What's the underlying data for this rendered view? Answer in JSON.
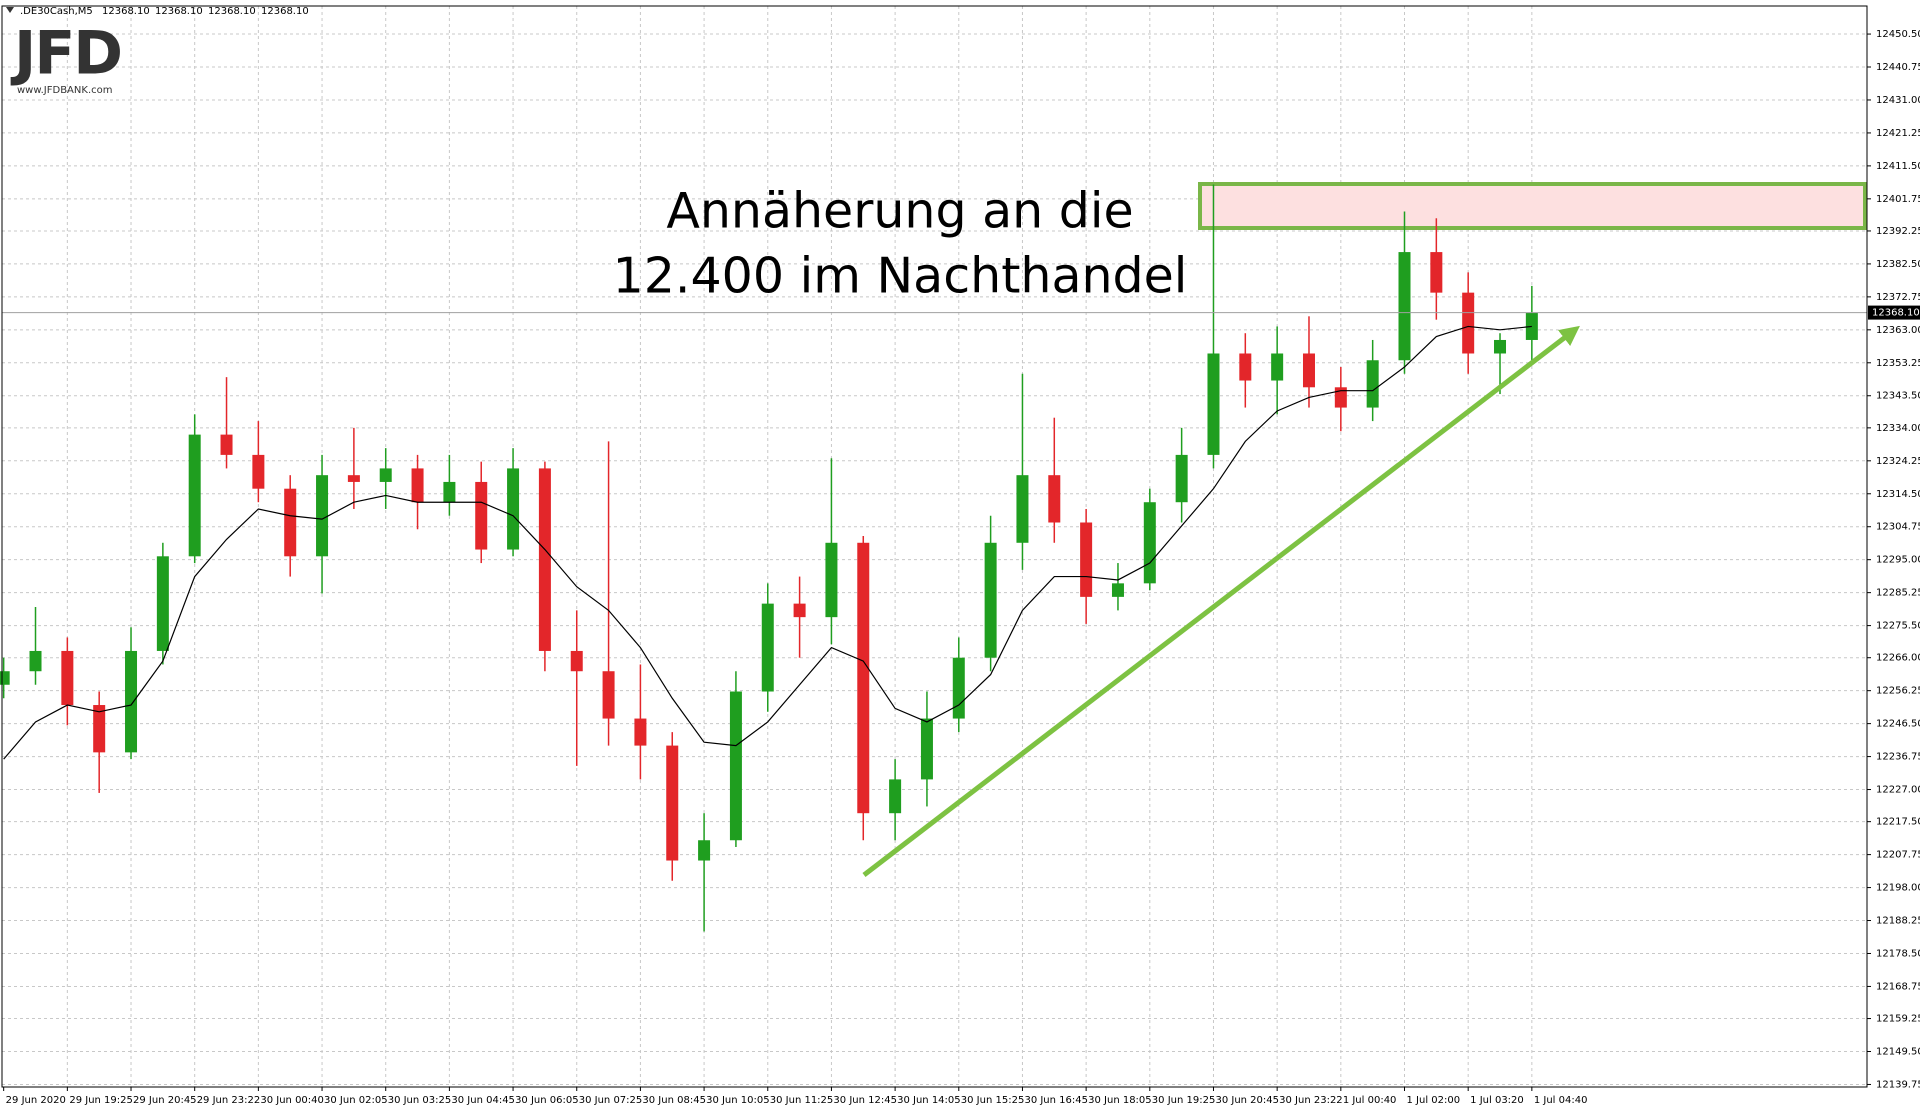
{
  "logo": {
    "mark": "JFD",
    "url": "www.JFDBANK.com"
  },
  "chart_data": {
    "type": "candlestick",
    "symbol": ".DE30Cash,M5",
    "quote_labels": [
      "12368.10",
      "12368.10",
      "12368.10",
      "12368.10"
    ],
    "last_price": {
      "value": 12368.1,
      "label": "12368.10"
    },
    "annotation": [
      "Annäherung an die",
      "12.400 im Nachthandel"
    ],
    "categories": [
      "29 Jun 2020",
      null,
      "29 Jun 19:25",
      null,
      "29 Jun 20:45",
      null,
      "29 Jun 23:22",
      null,
      "30 Jun 00:40",
      null,
      "30 Jun 02:05",
      null,
      "30 Jun 03:25",
      null,
      "30 Jun 04:45",
      null,
      "30 Jun 06:05",
      null,
      "30 Jun 07:25",
      null,
      "30 Jun 08:45",
      null,
      "30 Jun 10:05",
      null,
      "30 Jun 11:25",
      null,
      "30 Jun 12:45",
      null,
      "30 Jun 14:05",
      null,
      "30 Jun 15:25",
      null,
      "30 Jun 16:45",
      null,
      "30 Jun 18:05",
      null,
      "30 Jun 19:25",
      null,
      "30 Jun 20:45",
      null,
      "30 Jun 23:22",
      null,
      "1 Jul 00:40",
      null,
      "1 Jul 02:00",
      null,
      "1 Jul 03:20",
      null,
      "1 Jul 04:40"
    ],
    "open": [
      12258,
      12262,
      12268,
      12252,
      12238,
      12268,
      12296,
      12332,
      12326,
      12316,
      12296,
      12320,
      12318,
      12322,
      12312,
      12318,
      12298,
      12322,
      12268,
      12262,
      12248,
      12240,
      12206,
      12212,
      12256,
      12282,
      12278,
      12300,
      12220,
      12230,
      12248,
      12266,
      12300,
      12320,
      12306,
      12284,
      12288,
      12312,
      12326,
      12356,
      12348,
      12356,
      12346,
      12340,
      12354,
      12386,
      12374,
      12356,
      12360
    ],
    "high": [
      12266,
      12281,
      12272,
      12256,
      12275,
      12300,
      12338,
      12349,
      12336,
      12320,
      12326,
      12334,
      12328,
      12326,
      12326,
      12324,
      12328,
      12324,
      12280,
      12330,
      12264,
      12244,
      12220,
      12262,
      12288,
      12290,
      12325,
      12302,
      12236,
      12256,
      12272,
      12308,
      12350,
      12337,
      12310,
      12294,
      12316,
      12334,
      12406,
      12362,
      12364,
      12367,
      12352,
      12360,
      12398,
      12396,
      12380,
      12362,
      12376
    ],
    "low": [
      12254,
      12258,
      12246,
      12226,
      12236,
      12264,
      12294,
      12322,
      12312,
      12290,
      12285,
      12310,
      12310,
      12304,
      12308,
      12294,
      12296,
      12262,
      12234,
      12240,
      12230,
      12200,
      12185,
      12210,
      12250,
      12266,
      12270,
      12212,
      12212,
      12222,
      12244,
      12262,
      12292,
      12300,
      12276,
      12280,
      12286,
      12306,
      12322,
      12340,
      12338,
      12340,
      12333,
      12336,
      12350,
      12366,
      12350,
      12344,
      12354
    ],
    "close": [
      12262,
      12268,
      12252,
      12238,
      12268,
      12296,
      12332,
      12326,
      12316,
      12296,
      12320,
      12318,
      12322,
      12312,
      12318,
      12298,
      12322,
      12268,
      12262,
      12248,
      12240,
      12206,
      12212,
      12256,
      12282,
      12278,
      12300,
      12220,
      12230,
      12248,
      12266,
      12300,
      12320,
      12306,
      12284,
      12288,
      12312,
      12326,
      12356,
      12348,
      12356,
      12346,
      12340,
      12354,
      12386,
      12374,
      12356,
      12360,
      12368.1
    ],
    "ma": [
      12236,
      12247,
      12252,
      12250,
      12252,
      12265,
      12290,
      12301,
      12310,
      12308,
      12307,
      12312,
      12314,
      12312,
      12312,
      12312,
      12308,
      12298,
      12287,
      12280,
      12269,
      12254,
      12241,
      12240,
      12247,
      12258,
      12269,
      12265,
      12251,
      12247,
      12252,
      12261,
      12280,
      12290,
      12290,
      12289,
      12294,
      12305,
      12316,
      12330,
      12339,
      12343,
      12345,
      12345,
      12352,
      12361,
      12364,
      12363,
      12364
    ],
    "bull_color": "#1f9e1f",
    "bear_color": "#e3262a",
    "ma_color": "#000000",
    "grid": true,
    "ylim": [
      12139.0,
      12458.8
    ],
    "yticks": [
      {
        "value": 12139.75,
        "label": "12139.75"
      },
      {
        "value": 12149.5,
        "label": "12149.50"
      },
      {
        "value": 12159.25,
        "label": "12159.25"
      },
      {
        "value": 12168.75,
        "label": "12168.75"
      },
      {
        "value": 12178.5,
        "label": "12178.50"
      },
      {
        "value": 12188.25,
        "label": "12188.25"
      },
      {
        "value": 12198,
        "label": "12198.00"
      },
      {
        "value": 12207.75,
        "label": "12207.75"
      },
      {
        "value": 12217.5,
        "label": "12217.50"
      },
      {
        "value": 12227,
        "label": "12227.00"
      },
      {
        "value": 12236.75,
        "label": "12236.75"
      },
      {
        "value": 12246.5,
        "label": "12246.50"
      },
      {
        "value": 12256.25,
        "label": "12256.25"
      },
      {
        "value": 12266,
        "label": "12266.00"
      },
      {
        "value": 12275.5,
        "label": "12275.50"
      },
      {
        "value": 12285.25,
        "label": "12285.25"
      },
      {
        "value": 12295,
        "label": "12295.00"
      },
      {
        "value": 12304.75,
        "label": "12304.75"
      },
      {
        "value": 12314.5,
        "label": "12314.50"
      },
      {
        "value": 12324.25,
        "label": "12324.25"
      },
      {
        "value": 12334,
        "label": "12334.00"
      },
      {
        "value": 12343.5,
        "label": "12343.50"
      },
      {
        "value": 12353.25,
        "label": "12353.25"
      },
      {
        "value": 12363,
        "label": "12363.00"
      },
      {
        "value": 12372.75,
        "label": "12372.75"
      },
      {
        "value": 12382.5,
        "label": "12382.50"
      },
      {
        "value": 12392.25,
        "label": "12392.25"
      },
      {
        "value": 12401.75,
        "label": "12401.75"
      },
      {
        "value": 12411.5,
        "label": "12411.50"
      },
      {
        "value": 12421.25,
        "label": "12421.25"
      },
      {
        "value": 12431,
        "label": "12431.00"
      },
      {
        "value": 12440.75,
        "label": "12440.75"
      },
      {
        "value": 12450.5,
        "label": "12450.50"
      }
    ]
  }
}
